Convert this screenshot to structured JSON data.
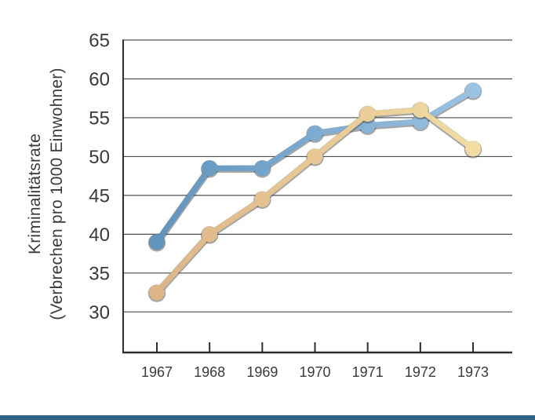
{
  "page": {
    "background": "#ffffff",
    "footer_bar_color": "#2f6487"
  },
  "chart_data": {
    "type": "line",
    "title": "",
    "ylabel_line1": "Kriminalitätsrate",
    "ylabel_line2": "(Verbrechen pro 1000 Einwohner)",
    "xlabel": "",
    "categories": [
      "1967",
      "1968",
      "1969",
      "1970",
      "1971",
      "1972",
      "1973"
    ],
    "y_ticks": [
      65,
      60,
      55,
      50,
      45,
      40,
      35,
      30
    ],
    "ylim": [
      25,
      65
    ],
    "grid": "horizontal",
    "legend": "none",
    "series": [
      {
        "name": "series-blue",
        "values": [
          39,
          48.5,
          48.5,
          53,
          54,
          54.5,
          58.5
        ],
        "color_start": "#5f92bc",
        "color_end": "#9cc4e4"
      },
      {
        "name": "series-tan",
        "values": [
          32.5,
          40,
          44.5,
          50,
          55.5,
          56,
          51
        ],
        "color_start": "#dcb486",
        "color_end": "#f2dda4"
      }
    ],
    "axis_color": "#2d2d2d",
    "grid_color": "#4d4d4d",
    "tick_label_color": "#3a3a3a"
  }
}
